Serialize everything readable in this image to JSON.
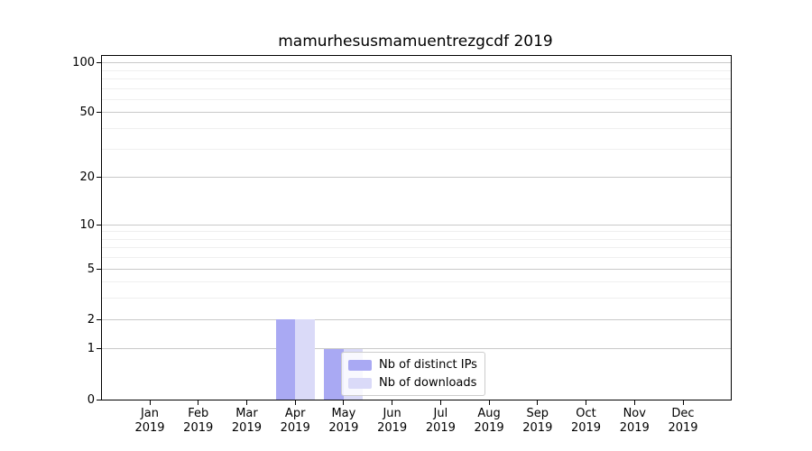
{
  "chart_data": {
    "type": "bar",
    "title": "mamurhesusmamuentrezgcdf 2019",
    "categories": [
      "Jan",
      "Feb",
      "Mar",
      "Apr",
      "May",
      "Jun",
      "Jul",
      "Aug",
      "Sep",
      "Oct",
      "Nov",
      "Dec"
    ],
    "year_label": "2019",
    "series": [
      {
        "name": "Nb of distinct IPs",
        "color": "#a9a9f3",
        "values": [
          0,
          0,
          0,
          2,
          1,
          0,
          0,
          0,
          0,
          0,
          0,
          0
        ]
      },
      {
        "name": "Nb of downloads",
        "color": "#dadaf8",
        "values": [
          0,
          0,
          0,
          2,
          1,
          0,
          0,
          0,
          0,
          0,
          0,
          0
        ]
      }
    ],
    "xlabel": "",
    "ylabel": "",
    "yscale": "log1p",
    "ylim": [
      0,
      110
    ],
    "y_major_ticks": [
      0,
      1,
      2,
      5,
      10,
      20,
      50,
      100
    ],
    "y_minor_ticks": [
      3,
      4,
      6,
      7,
      8,
      9,
      30,
      40,
      60,
      70,
      80,
      90
    ],
    "grid": true,
    "grid_major_color": "#c9c9c9",
    "grid_minor_color": "#efefef",
    "legend_position": "lower-center"
  }
}
